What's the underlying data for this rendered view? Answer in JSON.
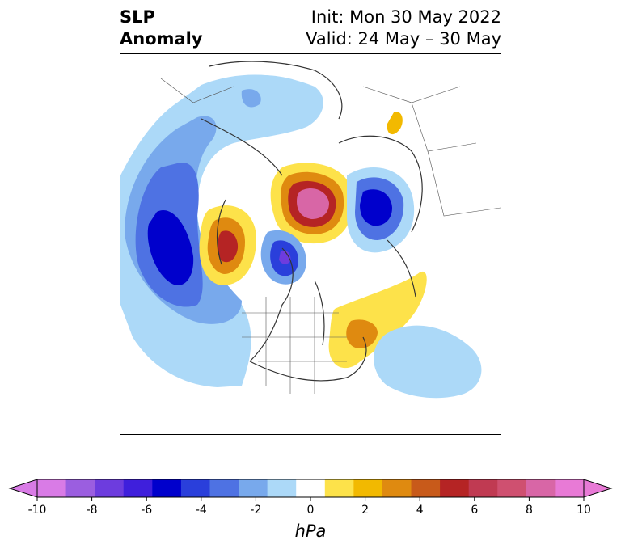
{
  "title": {
    "left_line1": "SLP",
    "left_line2": "Anomaly",
    "right_line1": "Init: Mon 30 May 2022",
    "right_line2": "Valid: 24 May – 30 May"
  },
  "colorbar": {
    "unit": "hPa",
    "ticks": [
      "-10",
      "-8",
      "-6",
      "-4",
      "-2",
      "0",
      "2",
      "4",
      "6",
      "8",
      "10"
    ],
    "colors": [
      "#d97be6",
      "#9b5ee0",
      "#6d3cde",
      "#3f1fdc",
      "#0000cc",
      "#2a3fdb",
      "#4e72e3",
      "#78a9ec",
      "#acd9f8",
      "#ffffff",
      "#fde24a",
      "#f2b900",
      "#df8a10",
      "#c85a1a",
      "#b52424",
      "#c03a52",
      "#cf5070",
      "#d866a6",
      "#e87ad6"
    ],
    "extend_colors": {
      "min": "#d97be6",
      "max": "#e87ad6"
    }
  },
  "map": {
    "projection": "north-polar-stereographic",
    "field": "sea-level pressure anomaly"
  }
}
